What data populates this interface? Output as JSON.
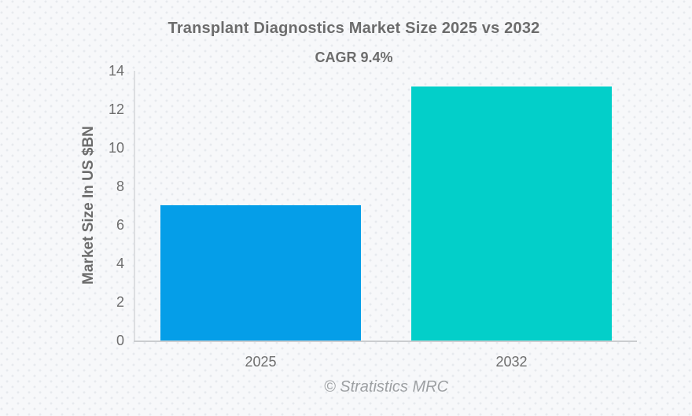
{
  "chart_data": {
    "type": "bar",
    "title": "Transplant Diagnostics Market Size 2025 vs 2032",
    "subtitle": "CAGR 9.4%",
    "categories": [
      "2025",
      "2032"
    ],
    "series": [
      {
        "name": "Market Size In US $BN",
        "values": [
          7.04,
          13.19
        ]
      }
    ],
    "bar_colors": [
      "#059ee8",
      "#03cfc9"
    ],
    "xlabel": "",
    "ylabel": "Market Size In US $BN",
    "ylim": [
      0,
      14
    ],
    "yticks": [
      0,
      2,
      4,
      6,
      8,
      10,
      12,
      14
    ],
    "grid": false,
    "legend_position": "none",
    "bar_width_fraction": 0.8,
    "watermark": "© Stratistics MRC",
    "colors": {
      "text_gray": "#6c6c6c",
      "tick_gray": "#6e6e6e",
      "watermark_gray": "#9da0a3",
      "y_axis_line": "#dcdee1",
      "x_axis_line": "#cbcdd0",
      "background": "#f7f8fa"
    }
  }
}
